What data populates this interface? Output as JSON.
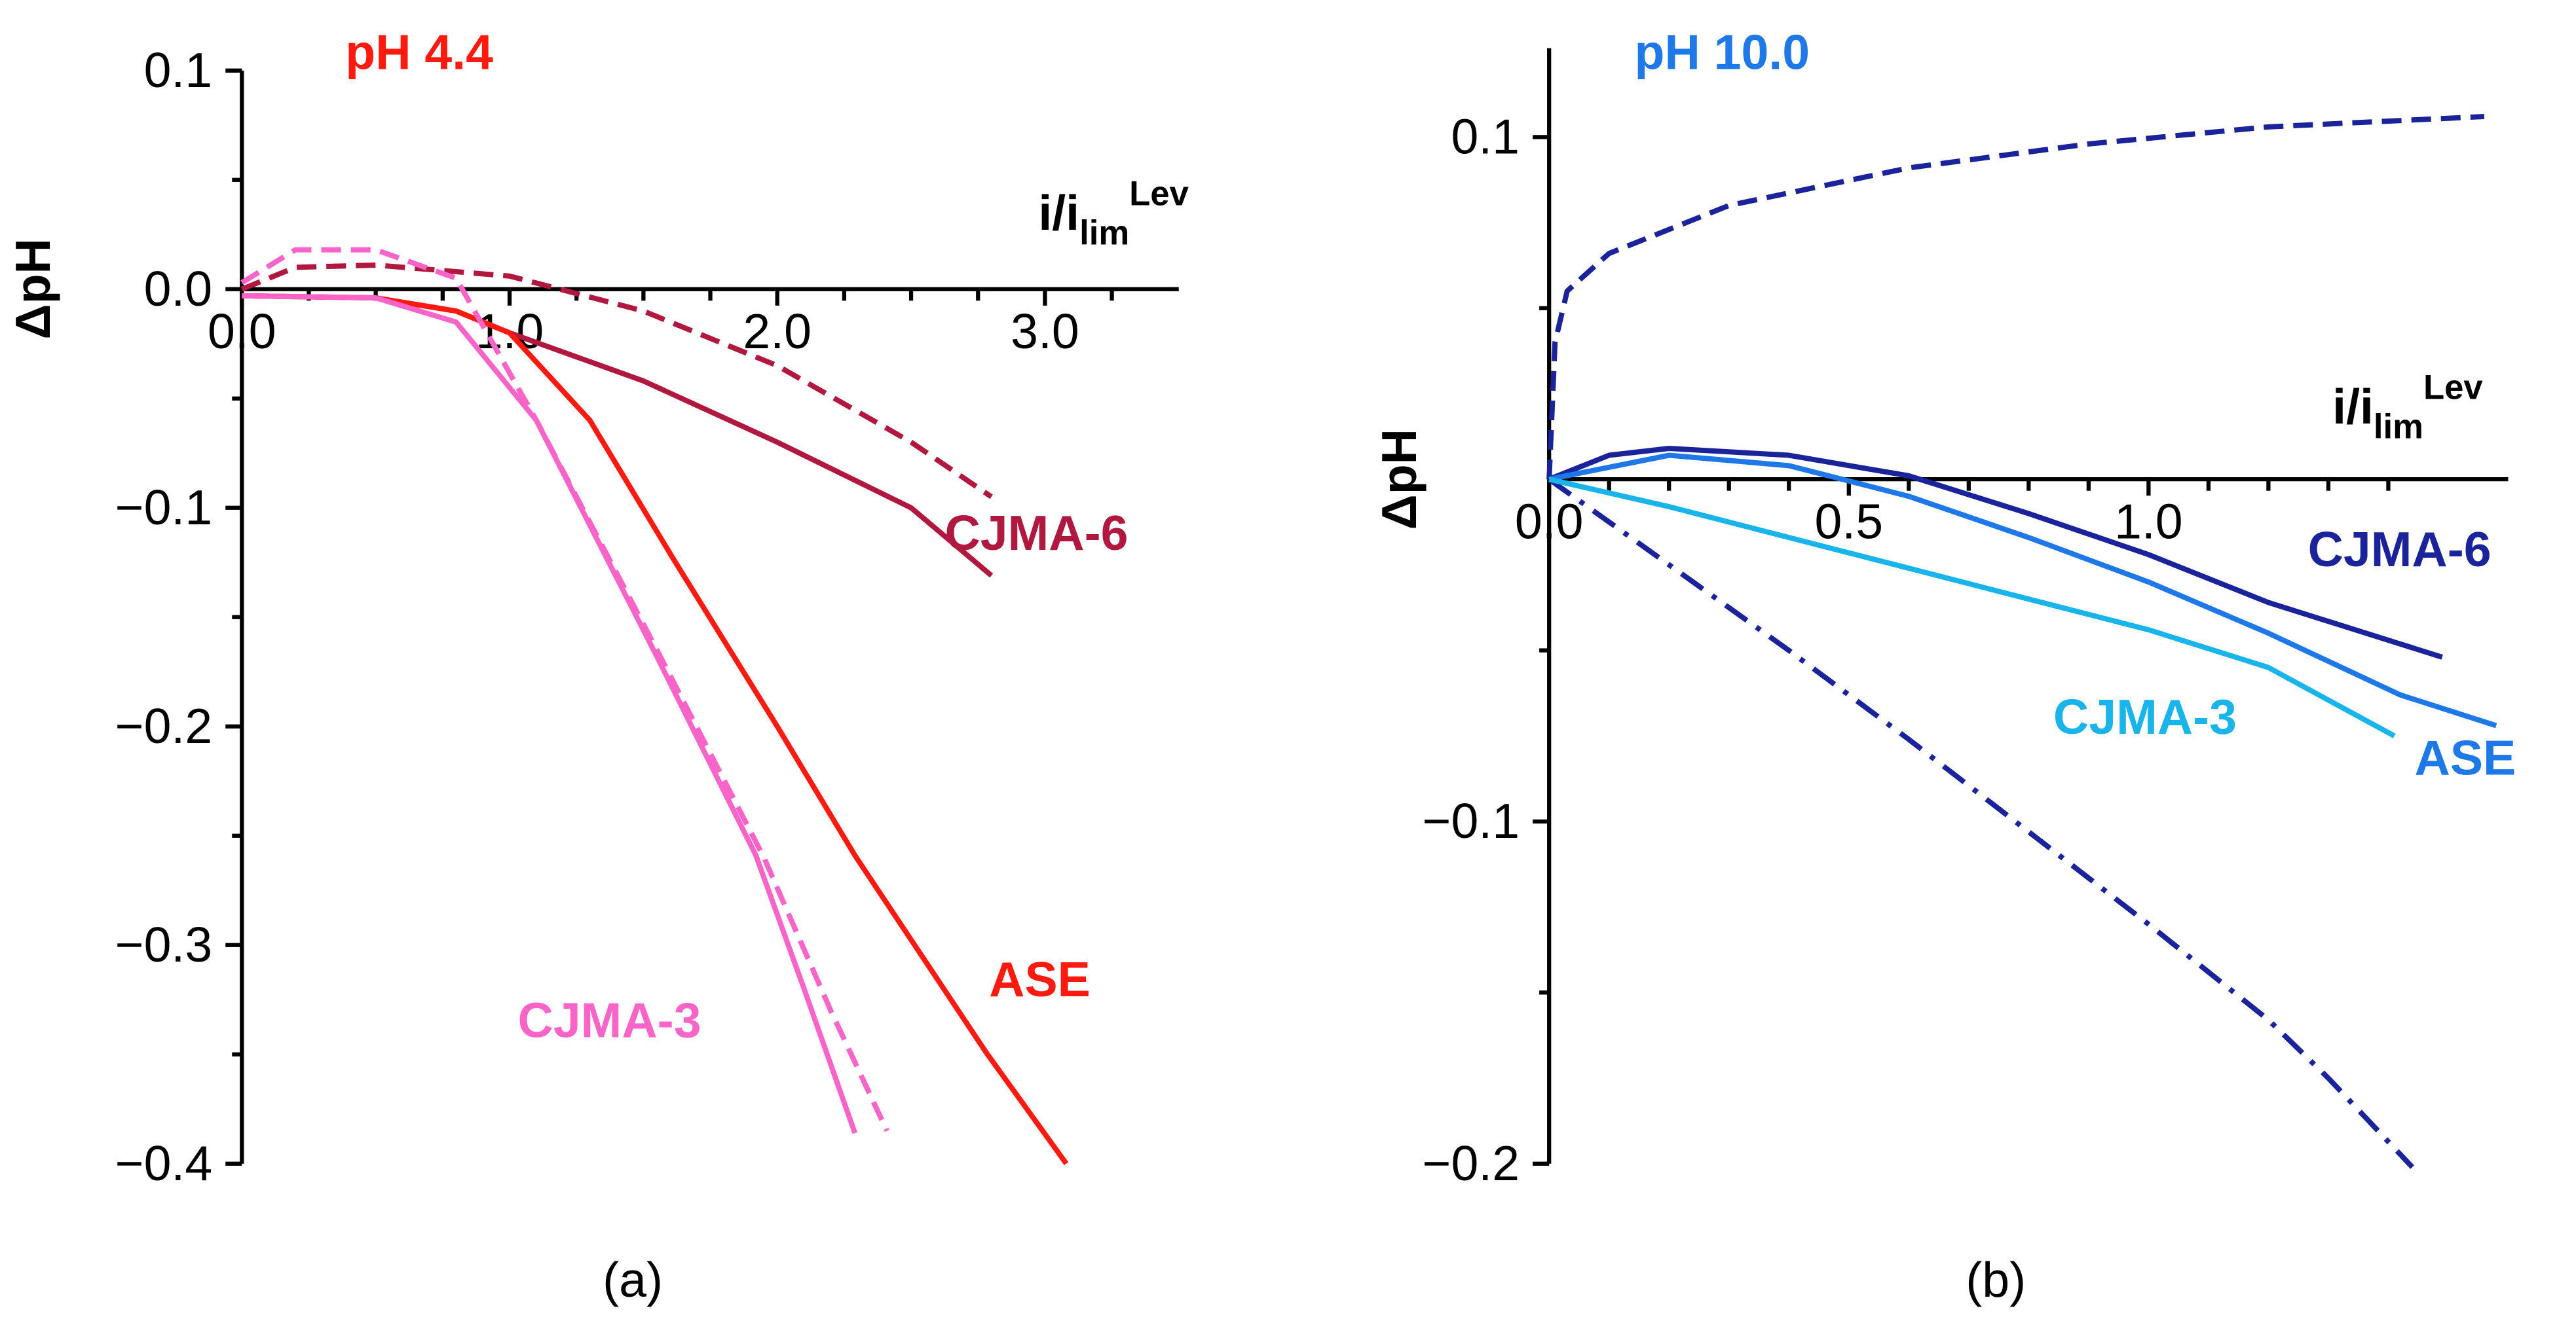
{
  "chart_data": [
    {
      "type": "line",
      "title": "pH 4.4",
      "title_color": "#ff1a10",
      "y_label": "ΔpH",
      "x_label": {
        "main": "i/i",
        "sub": "lim",
        "sup": "Lev"
      },
      "caption": "(a)",
      "xlim": [
        0,
        3.5
      ],
      "ylim": [
        -0.4,
        0.1
      ],
      "xticks": [
        {
          "value": 0,
          "label": "0.0"
        },
        {
          "value": 1,
          "label": "1.0"
        },
        {
          "value": 2,
          "label": "2.0"
        },
        {
          "value": 3,
          "label": "3.0"
        }
      ],
      "yticks": [
        0.1,
        {
          "value": 0,
          "label": "0.0"
        },
        {
          "value": -0.1,
          "label": "−0.1"
        },
        {
          "value": -0.2,
          "label": "−0.2"
        },
        {
          "value": -0.3,
          "label": "−0.3"
        },
        {
          "value": -0.4,
          "label": "−0.4"
        }
      ],
      "xminorticks": [
        0.25,
        0.5,
        0.75,
        1.25,
        1.5,
        1.75,
        2.25,
        2.5,
        2.75,
        3.25
      ],
      "yminorticks": [
        0.05,
        -0.05,
        -0.15,
        -0.25,
        -0.35
      ],
      "series": [
        {
          "name": "CJMA-6",
          "color": "#b01840",
          "style": "solid",
          "x": [
            0,
            0.5,
            0.8,
            1.0,
            1.5,
            2.0,
            2.5,
            2.8
          ],
          "values": [
            -0.003,
            -0.004,
            -0.01,
            -0.02,
            -0.042,
            -0.07,
            -0.1,
            -0.131
          ]
        },
        {
          "color": "#b01840",
          "style": "dashed",
          "x": [
            0,
            0.2,
            0.5,
            1.0,
            1.5,
            2.0,
            2.5,
            2.8
          ],
          "values": [
            0,
            0.01,
            0.011,
            0.006,
            -0.01,
            -0.035,
            -0.07,
            -0.095
          ]
        },
        {
          "name": "ASE",
          "color": "#ff1a10",
          "style": "solid",
          "x": [
            0,
            0.5,
            0.8,
            1.0,
            1.3,
            1.61,
            2.0,
            2.29,
            2.78,
            3.08
          ],
          "values": [
            -0.003,
            -0.004,
            -0.01,
            -0.02,
            -0.06,
            -0.123,
            -0.2,
            -0.259,
            -0.349,
            -0.4
          ]
        },
        {
          "name": "CJMA-3",
          "color": "#f864c8",
          "style": "solid",
          "x": [
            0,
            0.5,
            0.8,
            1.1,
            1.55,
            1.92,
            2.1,
            2.29
          ],
          "values": [
            -0.003,
            -0.004,
            -0.015,
            -0.06,
            -0.168,
            -0.259,
            -0.32,
            -0.386
          ]
        },
        {
          "color": "#f864c8",
          "style": "dashed",
          "x": [
            0,
            0.2,
            0.5,
            0.8,
            1.1,
            1.55,
            1.95,
            2.2,
            2.41
          ],
          "values": [
            0.003,
            0.018,
            0.018,
            0.005,
            -0.06,
            -0.165,
            -0.26,
            -0.33,
            -0.385
          ]
        }
      ]
    },
    {
      "type": "line",
      "title": "pH 10.0",
      "title_color": "#1e78e8",
      "y_label": "ΔpH",
      "x_label": {
        "main": "i/i",
        "sub": "lim",
        "sup": "Lev"
      },
      "caption": "(b)",
      "xlim": [
        0,
        1.6
      ],
      "ylim": [
        -0.2,
        0.126
      ],
      "xticks": [
        {
          "value": 0,
          "label": "0.0"
        },
        {
          "value": 0.5,
          "label": "0.5"
        },
        {
          "value": 1,
          "label": "1.0"
        }
      ],
      "yticks": [
        0.1,
        {
          "value": -0.1,
          "label": "−0.1"
        },
        {
          "value": -0.2,
          "label": "−0.2"
        }
      ],
      "xminorticks": [
        0.1,
        0.2,
        0.3,
        0.4,
        0.6,
        0.7,
        0.8,
        0.9,
        1.1,
        1.2,
        1.3,
        1.4
      ],
      "yminorticks": [
        0.05,
        -0.05,
        -0.15
      ],
      "series": [
        {
          "color": "#1a239a",
          "style": "dashed",
          "x": [
            0,
            0.01,
            0.03,
            0.1,
            0.3,
            0.6,
            0.9,
            1.2,
            1.56
          ],
          "values": [
            0,
            0.04,
            0.055,
            0.066,
            0.08,
            0.091,
            0.098,
            0.103,
            0.106
          ]
        },
        {
          "name": "CJMA-6",
          "color": "#1a239a",
          "style": "solid",
          "x": [
            0,
            0.1,
            0.2,
            0.4,
            0.6,
            0.8,
            1.0,
            1.2,
            1.49
          ],
          "values": [
            0,
            0.007,
            0.009,
            0.007,
            0.001,
            -0.01,
            -0.022,
            -0.036,
            -0.052
          ]
        },
        {
          "color": "#1a239a",
          "style": "dashdot",
          "x": [
            0,
            0.2,
            0.4,
            0.6,
            0.8,
            1.0,
            1.2,
            1.3,
            1.44
          ],
          "values": [
            0,
            -0.025,
            -0.05,
            -0.076,
            -0.103,
            -0.13,
            -0.158,
            -0.175,
            -0.201
          ]
        },
        {
          "name": "ASE",
          "color": "#1e78e8",
          "style": "solid",
          "x": [
            0,
            0.2,
            0.4,
            0.6,
            0.8,
            1.0,
            1.2,
            1.42,
            1.58
          ],
          "values": [
            0,
            0.007,
            0.004,
            -0.005,
            -0.017,
            -0.03,
            -0.045,
            -0.063,
            -0.072
          ]
        },
        {
          "name": "CJMA-3",
          "color": "#18b4ea",
          "style": "solid",
          "x": [
            0,
            0.2,
            0.4,
            0.6,
            0.8,
            1.0,
            1.2,
            1.41
          ],
          "values": [
            0,
            -0.008,
            -0.017,
            -0.026,
            -0.035,
            -0.044,
            -0.055,
            -0.075
          ]
        }
      ]
    }
  ]
}
